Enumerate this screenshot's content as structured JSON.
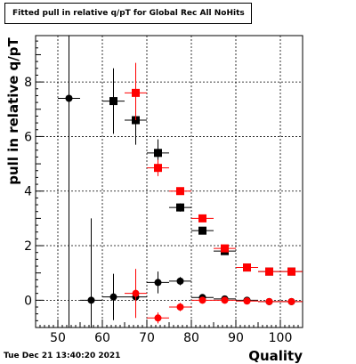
{
  "title": "Fitted pull in relative q/pT for Global Rec All NoHits",
  "timestamp": "Tue Dec 21 13:40:20 2021",
  "chart_data": {
    "type": "scatter",
    "title": "Fitted pull in relative q/pT for Global Rec All NoHits",
    "xlabel": "Quality",
    "ylabel": "pull in relative q/pT",
    "xlim": [
      45,
      105
    ],
    "ylim": [
      -1,
      9.7
    ],
    "xticks": [
      50,
      60,
      70,
      80,
      90,
      100
    ],
    "yticks": [
      0,
      2,
      4,
      6,
      8
    ],
    "grid": true,
    "series": [
      {
        "marker": "circle",
        "color": "#000000",
        "points": [
          {
            "x": 52.5,
            "y": 7.4,
            "xerr": 2.5,
            "yerr_lo": 9.0,
            "yerr_hi": 9.0
          },
          {
            "x": 57.5,
            "y": 0.0,
            "xerr": 2.5,
            "yerr_lo": 3.0,
            "yerr_hi": 3.0
          },
          {
            "x": 62.5,
            "y": 0.12,
            "xerr": 2.5,
            "yerr_lo": 0.85,
            "yerr_hi": 0.85
          },
          {
            "x": 67.5,
            "y": 0.12,
            "xerr": 2.5,
            "yerr_lo": 0.6,
            "yerr_hi": 0.6
          },
          {
            "x": 72.5,
            "y": 0.65,
            "xerr": 2.5,
            "yerr_lo": 0.4,
            "yerr_hi": 0.4
          },
          {
            "x": 77.5,
            "y": 0.7,
            "xerr": 2.5,
            "yerr_lo": 0.15,
            "yerr_hi": 0.15
          },
          {
            "x": 82.5,
            "y": 0.1,
            "xerr": 2.5,
            "yerr_lo": 0.05,
            "yerr_hi": 0.05
          },
          {
            "x": 87.5,
            "y": 0.05,
            "xerr": 2.5,
            "yerr_lo": 0.03,
            "yerr_hi": 0.03
          },
          {
            "x": 92.5,
            "y": 0.0,
            "xerr": 2.5,
            "yerr_lo": 0.02,
            "yerr_hi": 0.02
          },
          {
            "x": 97.5,
            "y": -0.05,
            "xerr": 2.5,
            "yerr_lo": 0.02,
            "yerr_hi": 0.02
          },
          {
            "x": 102.5,
            "y": -0.05,
            "xerr": 2.5,
            "yerr_lo": 0.02,
            "yerr_hi": 0.02
          }
        ]
      },
      {
        "marker": "square",
        "color": "#000000",
        "points": [
          {
            "x": 62.5,
            "y": 7.3,
            "xerr": 2.5,
            "yerr_lo": 1.2,
            "yerr_hi": 1.2
          },
          {
            "x": 67.5,
            "y": 6.6,
            "xerr": 2.5,
            "yerr_lo": 0.9,
            "yerr_hi": 0.9
          },
          {
            "x": 72.5,
            "y": 5.4,
            "xerr": 2.5,
            "yerr_lo": 0.5,
            "yerr_hi": 0.5
          },
          {
            "x": 77.5,
            "y": 3.4,
            "xerr": 2.5,
            "yerr_lo": 0.15,
            "yerr_hi": 0.15
          },
          {
            "x": 82.5,
            "y": 2.55,
            "xerr": 2.5,
            "yerr_lo": 0.08,
            "yerr_hi": 0.08
          },
          {
            "x": 87.5,
            "y": 1.8,
            "xerr": 2.5,
            "yerr_lo": 0.05,
            "yerr_hi": 0.05
          },
          {
            "x": 92.5,
            "y": 1.2,
            "xerr": 2.5,
            "yerr_lo": 0.03,
            "yerr_hi": 0.03
          },
          {
            "x": 97.5,
            "y": 1.05,
            "xerr": 2.5,
            "yerr_lo": 0.02,
            "yerr_hi": 0.02
          },
          {
            "x": 102.5,
            "y": 1.05,
            "xerr": 2.5,
            "yerr_lo": 0.02,
            "yerr_hi": 0.02
          }
        ]
      },
      {
        "marker": "square",
        "color": "#ff0000",
        "points": [
          {
            "x": 67.5,
            "y": 7.6,
            "xerr": 2.5,
            "yerr_lo": 1.0,
            "yerr_hi": 1.1
          },
          {
            "x": 72.5,
            "y": 4.85,
            "xerr": 2.5,
            "yerr_lo": 0.3,
            "yerr_hi": 0.3
          },
          {
            "x": 77.5,
            "y": 4.0,
            "xerr": 2.5,
            "yerr_lo": 0.1,
            "yerr_hi": 0.1
          },
          {
            "x": 82.5,
            "y": 3.0,
            "xerr": 2.5,
            "yerr_lo": 0.05,
            "yerr_hi": 0.05
          },
          {
            "x": 87.5,
            "y": 1.9,
            "xerr": 2.5,
            "yerr_lo": 0.04,
            "yerr_hi": 0.04
          },
          {
            "x": 92.5,
            "y": 1.2,
            "xerr": 2.5,
            "yerr_lo": 0.03,
            "yerr_hi": 0.03
          },
          {
            "x": 97.5,
            "y": 1.05,
            "xerr": 2.5,
            "yerr_lo": 0.02,
            "yerr_hi": 0.02
          },
          {
            "x": 102.5,
            "y": 1.05,
            "xerr": 2.5,
            "yerr_lo": 0.02,
            "yerr_hi": 0.02
          }
        ]
      },
      {
        "marker": "circle",
        "color": "#ff0000",
        "points": [
          {
            "x": 67.5,
            "y": 0.25,
            "xerr": 2.5,
            "yerr_lo": 0.9,
            "yerr_hi": 0.9
          },
          {
            "x": 72.5,
            "y": -0.65,
            "xerr": 2.5,
            "yerr_lo": 0.2,
            "yerr_hi": 0.2
          },
          {
            "x": 77.5,
            "y": -0.25,
            "xerr": 2.5,
            "yerr_lo": 0.15,
            "yerr_hi": 0.15
          },
          {
            "x": 82.5,
            "y": 0.0,
            "xerr": 2.5,
            "yerr_lo": 0.05,
            "yerr_hi": 0.05
          },
          {
            "x": 87.5,
            "y": 0.0,
            "xerr": 2.5,
            "yerr_lo": 0.03,
            "yerr_hi": 0.03
          },
          {
            "x": 92.5,
            "y": -0.03,
            "xerr": 2.5,
            "yerr_lo": 0.02,
            "yerr_hi": 0.02
          },
          {
            "x": 97.5,
            "y": -0.05,
            "xerr": 2.5,
            "yerr_lo": 0.02,
            "yerr_hi": 0.02
          },
          {
            "x": 102.5,
            "y": -0.05,
            "xerr": 2.5,
            "yerr_lo": 0.02,
            "yerr_hi": 0.02
          }
        ]
      }
    ]
  }
}
